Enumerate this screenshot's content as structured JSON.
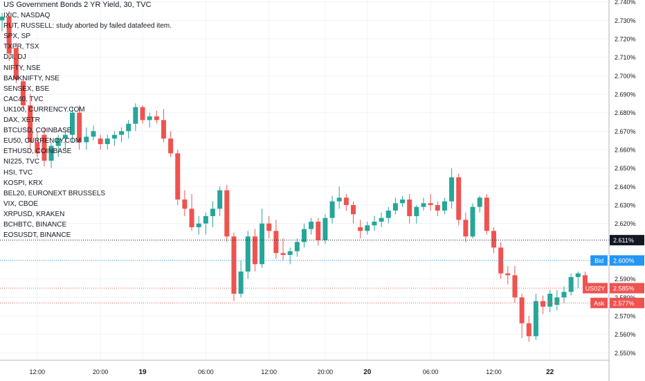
{
  "chart_data": {
    "type": "candlestick",
    "title": "US Government Bonds 2 YR Yield, 30, TVC",
    "ylim": [
      2.546,
      2.741
    ],
    "y_ticks": [
      "2.740%",
      "2.730%",
      "2.720%",
      "2.710%",
      "2.700%",
      "2.690%",
      "2.680%",
      "2.670%",
      "2.660%",
      "2.650%",
      "2.640%",
      "2.630%",
      "2.620%",
      "2.610%",
      "2.600%",
      "2.590%",
      "2.580%",
      "2.570%",
      "2.560%",
      "2.550%"
    ],
    "y_tick_values": [
      2.74,
      2.73,
      2.72,
      2.71,
      2.7,
      2.69,
      2.68,
      2.67,
      2.66,
      2.65,
      2.64,
      2.63,
      2.62,
      2.61,
      2.6,
      2.59,
      2.58,
      2.57,
      2.56,
      2.55
    ],
    "x_ticks": [
      "12:00",
      "20:00",
      "19",
      "06:00",
      "12:00",
      "20:00",
      "20",
      "06:00",
      "12:00",
      "22"
    ],
    "x_tick_index": [
      5,
      14,
      20,
      29,
      38,
      46,
      52,
      61,
      70,
      78
    ],
    "candles": [
      {
        "o": 2.73,
        "h": 2.734,
        "l": 2.724,
        "c": 2.732
      },
      {
        "o": 2.732,
        "h": 2.735,
        "l": 2.708,
        "c": 2.712
      },
      {
        "o": 2.715,
        "h": 2.718,
        "l": 2.696,
        "c": 2.698
      },
      {
        "o": 2.697,
        "h": 2.7,
        "l": 2.682,
        "c": 2.684
      },
      {
        "o": 2.684,
        "h": 2.69,
        "l": 2.66,
        "c": 2.664
      },
      {
        "o": 2.664,
        "h": 2.67,
        "l": 2.656,
        "c": 2.658
      },
      {
        "o": 2.668,
        "h": 2.672,
        "l": 2.651,
        "c": 2.654
      },
      {
        "o": 2.654,
        "h": 2.664,
        "l": 2.65,
        "c": 2.662
      },
      {
        "o": 2.662,
        "h": 2.668,
        "l": 2.656,
        "c": 2.666
      },
      {
        "o": 2.666,
        "h": 2.67,
        "l": 2.66,
        "c": 2.668
      },
      {
        "o": 2.668,
        "h": 2.683,
        "l": 2.664,
        "c": 2.68
      },
      {
        "o": 2.68,
        "h": 2.684,
        "l": 2.66,
        "c": 2.664
      },
      {
        "o": 2.664,
        "h": 2.672,
        "l": 2.66,
        "c": 2.667
      },
      {
        "o": 2.667,
        "h": 2.673,
        "l": 2.665,
        "c": 2.67
      },
      {
        "o": 2.666,
        "h": 2.668,
        "l": 2.66,
        "c": 2.663
      },
      {
        "o": 2.663,
        "h": 2.668,
        "l": 2.66,
        "c": 2.666
      },
      {
        "o": 2.666,
        "h": 2.67,
        "l": 2.662,
        "c": 2.668
      },
      {
        "o": 2.668,
        "h": 2.672,
        "l": 2.664,
        "c": 2.67
      },
      {
        "o": 2.67,
        "h": 2.676,
        "l": 2.666,
        "c": 2.674
      },
      {
        "o": 2.674,
        "h": 2.685,
        "l": 2.67,
        "c": 2.683
      },
      {
        "o": 2.683,
        "h": 2.684,
        "l": 2.674,
        "c": 2.676
      },
      {
        "o": 2.676,
        "h": 2.68,
        "l": 2.672,
        "c": 2.678
      },
      {
        "o": 2.678,
        "h": 2.681,
        "l": 2.674,
        "c": 2.676
      },
      {
        "o": 2.676,
        "h": 2.682,
        "l": 2.664,
        "c": 2.666
      },
      {
        "o": 2.666,
        "h": 2.67,
        "l": 2.656,
        "c": 2.658
      },
      {
        "o": 2.658,
        "h": 2.66,
        "l": 2.63,
        "c": 2.633
      },
      {
        "o": 2.633,
        "h": 2.638,
        "l": 2.624,
        "c": 2.628
      },
      {
        "o": 2.628,
        "h": 2.636,
        "l": 2.616,
        "c": 2.618
      },
      {
        "o": 2.618,
        "h": 2.624,
        "l": 2.614,
        "c": 2.62
      },
      {
        "o": 2.62,
        "h": 2.626,
        "l": 2.614,
        "c": 2.624
      },
      {
        "o": 2.624,
        "h": 2.632,
        "l": 2.618,
        "c": 2.628
      },
      {
        "o": 2.628,
        "h": 2.64,
        "l": 2.624,
        "c": 2.638
      },
      {
        "o": 2.638,
        "h": 2.641,
        "l": 2.61,
        "c": 2.613
      },
      {
        "o": 2.613,
        "h": 2.615,
        "l": 2.578,
        "c": 2.582
      },
      {
        "o": 2.582,
        "h": 2.6,
        "l": 2.58,
        "c": 2.594
      },
      {
        "o": 2.594,
        "h": 2.616,
        "l": 2.59,
        "c": 2.613
      },
      {
        "o": 2.613,
        "h": 2.617,
        "l": 2.594,
        "c": 2.598
      },
      {
        "o": 2.598,
        "h": 2.628,
        "l": 2.596,
        "c": 2.62
      },
      {
        "o": 2.62,
        "h": 2.624,
        "l": 2.612,
        "c": 2.616
      },
      {
        "o": 2.616,
        "h": 2.622,
        "l": 2.601,
        "c": 2.604
      },
      {
        "o": 2.604,
        "h": 2.612,
        "l": 2.6,
        "c": 2.603
      },
      {
        "o": 2.603,
        "h": 2.607,
        "l": 2.598,
        "c": 2.605
      },
      {
        "o": 2.605,
        "h": 2.612,
        "l": 2.602,
        "c": 2.61
      },
      {
        "o": 2.61,
        "h": 2.62,
        "l": 2.607,
        "c": 2.617
      },
      {
        "o": 2.617,
        "h": 2.623,
        "l": 2.614,
        "c": 2.621
      },
      {
        "o": 2.621,
        "h": 2.623,
        "l": 2.608,
        "c": 2.611
      },
      {
        "o": 2.611,
        "h": 2.625,
        "l": 2.609,
        "c": 2.623
      },
      {
        "o": 2.623,
        "h": 2.635,
        "l": 2.62,
        "c": 2.632
      },
      {
        "o": 2.632,
        "h": 2.64,
        "l": 2.628,
        "c": 2.634
      },
      {
        "o": 2.634,
        "h": 2.636,
        "l": 2.627,
        "c": 2.63
      },
      {
        "o": 2.63,
        "h": 2.632,
        "l": 2.62,
        "c": 2.625
      },
      {
        "o": 2.618,
        "h": 2.622,
        "l": 2.612,
        "c": 2.616
      },
      {
        "o": 2.616,
        "h": 2.621,
        "l": 2.614,
        "c": 2.619
      },
      {
        "o": 2.619,
        "h": 2.624,
        "l": 2.616,
        "c": 2.621
      },
      {
        "o": 2.621,
        "h": 2.626,
        "l": 2.618,
        "c": 2.623
      },
      {
        "o": 2.623,
        "h": 2.629,
        "l": 2.62,
        "c": 2.627
      },
      {
        "o": 2.627,
        "h": 2.634,
        "l": 2.625,
        "c": 2.631
      },
      {
        "o": 2.631,
        "h": 2.635,
        "l": 2.629,
        "c": 2.633
      },
      {
        "o": 2.633,
        "h": 2.636,
        "l": 2.62,
        "c": 2.624
      },
      {
        "o": 2.624,
        "h": 2.63,
        "l": 2.62,
        "c": 2.629
      },
      {
        "o": 2.629,
        "h": 2.634,
        "l": 2.627,
        "c": 2.631
      },
      {
        "o": 2.631,
        "h": 2.636,
        "l": 2.627,
        "c": 2.63
      },
      {
        "o": 2.63,
        "h": 2.632,
        "l": 2.624,
        "c": 2.627
      },
      {
        "o": 2.627,
        "h": 2.634,
        "l": 2.625,
        "c": 2.632
      },
      {
        "o": 2.632,
        "h": 2.65,
        "l": 2.628,
        "c": 2.645
      },
      {
        "o": 2.645,
        "h": 2.647,
        "l": 2.619,
        "c": 2.622
      },
      {
        "o": 2.622,
        "h": 2.626,
        "l": 2.61,
        "c": 2.613
      },
      {
        "o": 2.613,
        "h": 2.631,
        "l": 2.612,
        "c": 2.629
      },
      {
        "o": 2.629,
        "h": 2.635,
        "l": 2.626,
        "c": 2.634
      },
      {
        "o": 2.634,
        "h": 2.636,
        "l": 2.614,
        "c": 2.616
      },
      {
        "o": 2.616,
        "h": 2.618,
        "l": 2.604,
        "c": 2.607
      },
      {
        "o": 2.607,
        "h": 2.61,
        "l": 2.59,
        "c": 2.593
      },
      {
        "o": 2.593,
        "h": 2.597,
        "l": 2.587,
        "c": 2.592
      },
      {
        "o": 2.592,
        "h": 2.597,
        "l": 2.577,
        "c": 2.58
      },
      {
        "o": 2.58,
        "h": 2.582,
        "l": 2.558,
        "c": 2.566
      },
      {
        "o": 2.566,
        "h": 2.57,
        "l": 2.556,
        "c": 2.559
      },
      {
        "o": 2.559,
        "h": 2.582,
        "l": 2.557,
        "c": 2.578
      },
      {
        "o": 2.578,
        "h": 2.581,
        "l": 2.571,
        "c": 2.575
      },
      {
        "o": 2.575,
        "h": 2.584,
        "l": 2.572,
        "c": 2.582
      },
      {
        "o": 2.576,
        "h": 2.584,
        "l": 2.573,
        "c": 2.58
      },
      {
        "o": 2.58,
        "h": 2.586,
        "l": 2.577,
        "c": 2.583
      },
      {
        "o": 2.583,
        "h": 2.593,
        "l": 2.581,
        "c": 2.591
      },
      {
        "o": 2.591,
        "h": 2.594,
        "l": 2.585,
        "c": 2.593
      },
      {
        "o": 2.592,
        "h": 2.594,
        "l": 2.583,
        "c": 2.585
      }
    ],
    "price_lines": [
      {
        "label": "",
        "value_text": "2.611%",
        "value": 2.611,
        "color": "#131722",
        "style": "dotted"
      },
      {
        "label": "Bid",
        "value_text": "2.600%",
        "value": 2.6,
        "color": "#2196f3",
        "style": "dotted"
      },
      {
        "label": "US02Y",
        "value_text": "2.585%",
        "value": 2.585,
        "color": "#ef5350",
        "style": "dotted"
      },
      {
        "label": "Ask",
        "value_text": "2.577%",
        "value": 2.577,
        "color": "#ef5350",
        "style": "dotted"
      }
    ],
    "up_color": "#26a69a",
    "down_color": "#ef5350",
    "grid": true
  },
  "legend": {
    "title": "US Government Bonds 2 YR Yield, 30, TVC",
    "studies": [
      "IXIC, NASDAQ",
      "RUT, RUSSELL: study aborted by failed datafeed item.",
      "SPX, SP",
      "TXPR, TSX",
      "DJI, DJ",
      "NIFTY, NSE",
      "BANKNIFTY, NSE",
      "SENSEX, BSE",
      "CAC40, TVC",
      "UK100, CURRENCY.COM",
      "DAX, XETR",
      "BTCUSD, COINBASE",
      "EU50, CURRENCY.COM",
      "ETHUSD, COINBASE",
      "NI225, TVC",
      "HSI, TVC",
      "KOSPI, KRX",
      "BEL20, EURONEXT BRUSSELS",
      "VIX, CBOE",
      "XRPUSD, KRAKEN",
      "BCHBTC, BINANCE",
      "EOSUSDT, BINANCE"
    ]
  }
}
